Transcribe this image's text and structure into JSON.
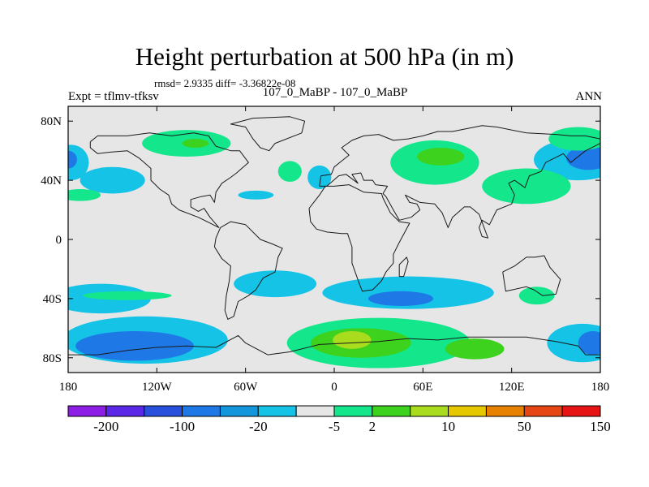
{
  "header": {
    "title": "Height perturbation at 500 hPa (in m)",
    "stats": "rmsd= 2.9335 diff= -3.36822e-08",
    "case": "107_0_MaBP - 107_0_MaBP",
    "expt": "Expt = tflmv-tfksv",
    "season": "ANN"
  },
  "map": {
    "projection": "cylindrical-equidistant",
    "lon_range": [
      -180,
      180
    ],
    "lat_range": [
      -90,
      90
    ],
    "lat_ticks": [
      {
        "value": 80,
        "label": "80N"
      },
      {
        "value": 40,
        "label": "40N"
      },
      {
        "value": 0,
        "label": "0"
      },
      {
        "value": -40,
        "label": "40S"
      },
      {
        "value": -80,
        "label": "80S"
      }
    ],
    "lon_ticks": [
      {
        "value": -180,
        "label": "180"
      },
      {
        "value": -120,
        "label": "120W"
      },
      {
        "value": -60,
        "label": "60W"
      },
      {
        "value": 0,
        "label": "0"
      },
      {
        "value": 60,
        "label": "60E"
      },
      {
        "value": 120,
        "label": "120E"
      },
      {
        "value": 180,
        "label": "180"
      }
    ],
    "background_color": "#e6e6e6"
  },
  "colorbar": {
    "colors": [
      "#8c1ee6",
      "#5a28e6",
      "#2850dc",
      "#1e78e6",
      "#1496dc",
      "#14c3e6",
      "#e6e6e6",
      "#14e68c",
      "#3cd21e",
      "#aadc1e",
      "#e6c800",
      "#e68200",
      "#e64614",
      "#e61414"
    ],
    "labels": [
      "-200",
      "-100",
      "-20",
      "-5",
      "2",
      "10",
      "50",
      "150"
    ],
    "label_boundary_index": [
      1,
      3,
      5,
      7,
      8,
      10,
      12,
      14
    ]
  },
  "contours": [
    {
      "level": "-5",
      "color": "#14c3e6",
      "lon": -150,
      "lat": 40,
      "rlon": 22,
      "rlat": 9
    },
    {
      "level": "-5",
      "color": "#14c3e6",
      "lon": -10,
      "lat": 42,
      "rlon": 8,
      "rlat": 8
    },
    {
      "level": "-5",
      "color": "#14c3e6",
      "lon": -53,
      "lat": 30,
      "rlon": 12,
      "rlat": 3
    },
    {
      "level": "-5",
      "color": "#14c3e6",
      "lon": -178,
      "lat": 52,
      "rlon": 12,
      "rlat": 12
    },
    {
      "level": "-20",
      "color": "#1e78e6",
      "lon": -180,
      "lat": 54,
      "rlon": 6,
      "rlat": 6
    },
    {
      "level": "-5",
      "color": "#14c3e6",
      "lon": 165,
      "lat": 54,
      "rlon": 30,
      "rlat": 14
    },
    {
      "level": "-20",
      "color": "#1e78e6",
      "lon": 172,
      "lat": 55,
      "rlon": 15,
      "rlat": 8
    },
    {
      "level": "2",
      "color": "#14e68c",
      "lon": -100,
      "lat": 65,
      "rlon": 30,
      "rlat": 9
    },
    {
      "level": "10",
      "color": "#3cd21e",
      "lon": -94,
      "lat": 65,
      "rlon": 9,
      "rlat": 3
    },
    {
      "level": "2",
      "color": "#14e68c",
      "lon": -30,
      "lat": 46,
      "rlon": 8,
      "rlat": 7
    },
    {
      "level": "2",
      "color": "#14e68c",
      "lon": -172,
      "lat": 30,
      "rlon": 14,
      "rlat": 4
    },
    {
      "level": "2",
      "color": "#14e68c",
      "lon": 68,
      "lat": 52,
      "rlon": 30,
      "rlat": 15
    },
    {
      "level": "10",
      "color": "#3cd21e",
      "lon": 72,
      "lat": 56,
      "rlon": 16,
      "rlat": 6
    },
    {
      "level": "2",
      "color": "#14e68c",
      "lon": 130,
      "lat": 36,
      "rlon": 30,
      "rlat": 12
    },
    {
      "level": "2",
      "color": "#14e68c",
      "lon": 165,
      "lat": 68,
      "rlon": 20,
      "rlat": 8
    },
    {
      "level": "-5",
      "color": "#14c3e6",
      "lon": -158,
      "lat": -40,
      "rlon": 34,
      "rlat": 10
    },
    {
      "level": "2",
      "color": "#14e68c",
      "lon": -140,
      "lat": -38,
      "rlon": 30,
      "rlat": 3
    },
    {
      "level": "-5",
      "color": "#14c3e6",
      "lon": -40,
      "lat": -30,
      "rlon": 28,
      "rlat": 9
    },
    {
      "level": "-5",
      "color": "#14c3e6",
      "lon": 50,
      "lat": -36,
      "rlon": 58,
      "rlat": 11
    },
    {
      "level": "-20",
      "color": "#1e78e6",
      "lon": 45,
      "lat": -40,
      "rlon": 22,
      "rlat": 5
    },
    {
      "level": "2",
      "color": "#14e68c",
      "lon": 137,
      "lat": -38,
      "rlon": 12,
      "rlat": 6
    },
    {
      "level": "-5",
      "color": "#14c3e6",
      "lon": -128,
      "lat": -68,
      "rlon": 56,
      "rlat": 16
    },
    {
      "level": "-20",
      "color": "#1e78e6",
      "lon": -135,
      "lat": -72,
      "rlon": 40,
      "rlat": 10
    },
    {
      "level": "-5",
      "color": "#14c3e6",
      "lon": 168,
      "lat": -70,
      "rlon": 24,
      "rlat": 13
    },
    {
      "level": "-20",
      "color": "#1e78e6",
      "lon": 175,
      "lat": -70,
      "rlon": 10,
      "rlat": 8
    },
    {
      "level": "2",
      "color": "#14e68c",
      "lon": 30,
      "lat": -70,
      "rlon": 62,
      "rlat": 17
    },
    {
      "level": "10",
      "color": "#3cd21e",
      "lon": 18,
      "lat": -70,
      "rlon": 34,
      "rlat": 10
    },
    {
      "level": "10",
      "color": "#3cd21e",
      "lon": 95,
      "lat": -74,
      "rlon": 20,
      "rlat": 7
    },
    {
      "level": "50",
      "color": "#aadc1e",
      "lon": 12,
      "lat": -68,
      "rlon": 13,
      "rlat": 6
    }
  ],
  "coastlines": [
    {
      "name": "north-america",
      "points": [
        [
          -165,
          66
        ],
        [
          -160,
          70
        ],
        [
          -140,
          70
        ],
        [
          -125,
          72
        ],
        [
          -110,
          70
        ],
        [
          -95,
          72
        ],
        [
          -85,
          70
        ],
        [
          -80,
          63
        ],
        [
          -70,
          60
        ],
        [
          -64,
          60
        ],
        [
          -58,
          52
        ],
        [
          -66,
          45
        ],
        [
          -70,
          42
        ],
        [
          -76,
          38
        ],
        [
          -80,
          32
        ],
        [
          -81,
          25
        ],
        [
          -84,
          30
        ],
        [
          -90,
          29
        ],
        [
          -97,
          27
        ],
        [
          -97,
          22
        ],
        [
          -92,
          19
        ],
        [
          -88,
          21
        ],
        [
          -84,
          15
        ],
        [
          -78,
          8
        ],
        [
          -80,
          9
        ],
        [
          -86,
          12
        ],
        [
          -92,
          15
        ],
        [
          -105,
          20
        ],
        [
          -110,
          24
        ],
        [
          -112,
          30
        ],
        [
          -118,
          34
        ],
        [
          -124,
          40
        ],
        [
          -124,
          48
        ],
        [
          -132,
          55
        ],
        [
          -140,
          60
        ],
        [
          -152,
          59
        ],
        [
          -160,
          58
        ],
        [
          -165,
          62
        ],
        [
          -165,
          66
        ]
      ]
    },
    {
      "name": "greenland",
      "points": [
        [
          -55,
          82
        ],
        [
          -30,
          83
        ],
        [
          -20,
          80
        ],
        [
          -22,
          72
        ],
        [
          -40,
          65
        ],
        [
          -44,
          60
        ],
        [
          -50,
          62
        ],
        [
          -55,
          68
        ],
        [
          -60,
          76
        ],
        [
          -70,
          78
        ],
        [
          -55,
          82
        ]
      ]
    },
    {
      "name": "south-america",
      "points": [
        [
          -77,
          8
        ],
        [
          -70,
          12
        ],
        [
          -60,
          10
        ],
        [
          -50,
          0
        ],
        [
          -42,
          -3
        ],
        [
          -35,
          -6
        ],
        [
          -38,
          -12
        ],
        [
          -40,
          -22
        ],
        [
          -48,
          -26
        ],
        [
          -53,
          -34
        ],
        [
          -58,
          -38
        ],
        [
          -65,
          -42
        ],
        [
          -68,
          -52
        ],
        [
          -72,
          -54
        ],
        [
          -74,
          -48
        ],
        [
          -73,
          -38
        ],
        [
          -71,
          -28
        ],
        [
          -70,
          -18
        ],
        [
          -76,
          -13
        ],
        [
          -81,
          -5
        ],
        [
          -80,
          1
        ],
        [
          -77,
          8
        ]
      ]
    },
    {
      "name": "eurasia",
      "points": [
        [
          -10,
          36
        ],
        [
          -9,
          43
        ],
        [
          -2,
          44
        ],
        [
          0,
          49
        ],
        [
          5,
          53
        ],
        [
          10,
          57
        ],
        [
          5,
          62
        ],
        [
          12,
          67
        ],
        [
          20,
          70
        ],
        [
          30,
          71
        ],
        [
          40,
          67
        ],
        [
          50,
          68
        ],
        [
          60,
          70
        ],
        [
          70,
          73
        ],
        [
          80,
          73
        ],
        [
          100,
          77
        ],
        [
          110,
          76
        ],
        [
          130,
          72
        ],
        [
          150,
          71
        ],
        [
          160,
          70
        ],
        [
          170,
          70
        ],
        [
          180,
          68
        ],
        [
          180,
          65
        ],
        [
          170,
          60
        ],
        [
          160,
          52
        ],
        [
          155,
          58
        ],
        [
          143,
          52
        ],
        [
          140,
          46
        ],
        [
          132,
          43
        ],
        [
          129,
          35
        ],
        [
          122,
          40
        ],
        [
          118,
          38
        ],
        [
          122,
          30
        ],
        [
          120,
          24
        ],
        [
          110,
          20
        ],
        [
          105,
          10
        ],
        [
          100,
          13
        ],
        [
          98,
          8
        ],
        [
          100,
          2
        ],
        [
          104,
          1
        ],
        [
          98,
          17
        ],
        [
          92,
          22
        ],
        [
          88,
          22
        ],
        [
          80,
          15
        ],
        [
          77,
          8
        ],
        [
          73,
          18
        ],
        [
          68,
          24
        ],
        [
          58,
          25
        ],
        [
          56,
          26
        ],
        [
          48,
          30
        ],
        [
          51,
          25
        ],
        [
          56,
          24
        ],
        [
          58,
          20
        ],
        [
          52,
          15
        ],
        [
          44,
          13
        ],
        [
          40,
          20
        ],
        [
          35,
          29
        ],
        [
          33,
          31
        ],
        [
          36,
          36
        ],
        [
          28,
          37
        ],
        [
          26,
          40
        ],
        [
          20,
          40
        ],
        [
          18,
          45
        ],
        [
          12,
          44
        ],
        [
          16,
          38
        ],
        [
          8,
          44
        ],
        [
          3,
          43
        ],
        [
          -5,
          36
        ],
        [
          -10,
          36
        ]
      ]
    },
    {
      "name": "africa",
      "points": [
        [
          -17,
          21
        ],
        [
          -16,
          12
        ],
        [
          -12,
          7
        ],
        [
          -5,
          5
        ],
        [
          5,
          4
        ],
        [
          9,
          4
        ],
        [
          12,
          -5
        ],
        [
          12,
          -16
        ],
        [
          17,
          -30
        ],
        [
          19,
          -35
        ],
        [
          26,
          -34
        ],
        [
          32,
          -28
        ],
        [
          35,
          -22
        ],
        [
          40,
          -16
        ],
        [
          40,
          -10
        ],
        [
          44,
          -2
        ],
        [
          51,
          11
        ],
        [
          44,
          12
        ],
        [
          38,
          18
        ],
        [
          33,
          28
        ],
        [
          32,
          31
        ],
        [
          20,
          32
        ],
        [
          10,
          37
        ],
        [
          0,
          36
        ],
        [
          -6,
          36
        ],
        [
          -10,
          30
        ],
        [
          -17,
          21
        ]
      ]
    },
    {
      "name": "australia",
      "points": [
        [
          114,
          -22
        ],
        [
          122,
          -18
        ],
        [
          130,
          -12
        ],
        [
          136,
          -12
        ],
        [
          142,
          -11
        ],
        [
          146,
          -19
        ],
        [
          153,
          -27
        ],
        [
          150,
          -37
        ],
        [
          141,
          -38
        ],
        [
          135,
          -34
        ],
        [
          130,
          -32
        ],
        [
          116,
          -35
        ],
        [
          114,
          -22
        ]
      ]
    },
    {
      "name": "antarctica",
      "points": [
        [
          -180,
          -78
        ],
        [
          -160,
          -78
        ],
        [
          -140,
          -75
        ],
        [
          -120,
          -73
        ],
        [
          -100,
          -72
        ],
        [
          -80,
          -73
        ],
        [
          -65,
          -65
        ],
        [
          -60,
          -70
        ],
        [
          -45,
          -78
        ],
        [
          -30,
          -76
        ],
        [
          -10,
          -71
        ],
        [
          10,
          -70
        ],
        [
          30,
          -69
        ],
        [
          50,
          -67
        ],
        [
          70,
          -68
        ],
        [
          90,
          -66
        ],
        [
          110,
          -66
        ],
        [
          130,
          -66
        ],
        [
          150,
          -69
        ],
        [
          165,
          -72
        ],
        [
          170,
          -78
        ],
        [
          180,
          -78
        ]
      ]
    },
    {
      "name": "madagascar",
      "points": [
        [
          44,
          -25
        ],
        [
          47,
          -25
        ],
        [
          50,
          -15
        ],
        [
          49,
          -12
        ],
        [
          44,
          -17
        ],
        [
          44,
          -25
        ]
      ]
    }
  ]
}
